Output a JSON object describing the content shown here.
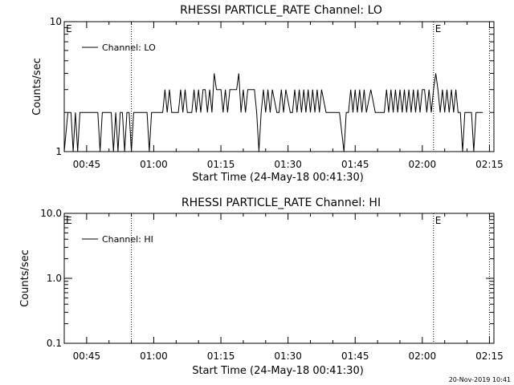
{
  "footer": {
    "timestamp": "20-Nov-2019 10:41"
  },
  "chart_data": [
    {
      "type": "line",
      "title": "RHESSI PARTICLE_RATE Channel: LO",
      "xlabel": "Start Time (24-May-18 00:41:30)",
      "ylabel": "Counts/sec",
      "y_scale": "log",
      "xlim_minutes_after_start": [
        -1.5,
        94.5
      ],
      "ylim": [
        1,
        10
      ],
      "x_ticks": [
        "00:45",
        "01:00",
        "01:15",
        "01:30",
        "01:45",
        "02:00",
        "02:15"
      ],
      "x_tick_minutes": [
        3.5,
        18.5,
        33.5,
        48.5,
        63.5,
        78.5,
        93.5
      ],
      "y_ticks": [
        "1",
        "10"
      ],
      "y_tick_values": [
        1,
        10
      ],
      "legend": {
        "placement": "top-left",
        "entries": [
          "Channel: LO"
        ]
      },
      "annotations": [
        {
          "text": "E",
          "at_minute": -1.5
        },
        {
          "text": "E",
          "at_minute": 81
        }
      ],
      "vertical_markers_minutes": [
        13.5,
        81,
        93.5
      ],
      "series": [
        {
          "name": "Channel: LO",
          "points_minutes": [
            -1.5,
            -0.7,
            0,
            0.5,
            1,
            1.5,
            2,
            2.5,
            3,
            3.5,
            4,
            4.5,
            5,
            5.5,
            6,
            6.5,
            7,
            8,
            9,
            9.5,
            10,
            10.5,
            11,
            11.5,
            12,
            12.5,
            13,
            13.5,
            14,
            15,
            16,
            17,
            17.5,
            18,
            19,
            20,
            20.5,
            21,
            21.5,
            22,
            22.5,
            23,
            24,
            24.5,
            25,
            25.5,
            26,
            27,
            27.5,
            28,
            28.5,
            29,
            29.5,
            30,
            30.5,
            31,
            31.5,
            32,
            32.5,
            33,
            33.5,
            34,
            34.5,
            35,
            35.5,
            36,
            37,
            37.5,
            38,
            38.5,
            39,
            39.5,
            40,
            40.5,
            41,
            41.5,
            42,
            42.5,
            43,
            43.5,
            44,
            44.5,
            45,
            46,
            46.5,
            47,
            47.5,
            48,
            49,
            49.5,
            50,
            50.5,
            51,
            51.5,
            52,
            52.5,
            53,
            53.5,
            54,
            54.5,
            55,
            55.5,
            56,
            57,
            58,
            58.5,
            59,
            59.5,
            60,
            61,
            61.5,
            62,
            62.5,
            63,
            63.5,
            64,
            64.5,
            65,
            65.5,
            66,
            67,
            68,
            69,
            69.5,
            70,
            70.5,
            71,
            71.5,
            72,
            72.5,
            73,
            73.5,
            74,
            74.5,
            75,
            75.5,
            76,
            76.5,
            77,
            77.5,
            78,
            78.5,
            79,
            79.5,
            80,
            80.5,
            81,
            81.5,
            82,
            82.5,
            83,
            83.5,
            84,
            84.5,
            85,
            85.5,
            86,
            86.5,
            87,
            87.5,
            88,
            88.5,
            89,
            89.5,
            90,
            90.5,
            91,
            92
          ],
          "values": [
            1,
            2,
            2,
            1,
            2,
            1,
            2,
            2,
            2,
            2,
            2,
            2,
            2,
            2,
            2,
            1,
            2,
            2,
            2,
            1,
            2,
            1,
            2,
            2,
            1,
            2,
            2,
            1,
            2,
            2,
            2,
            2,
            1,
            2,
            2,
            2,
            2,
            3,
            2,
            3,
            2,
            2,
            2,
            3,
            2,
            3,
            2,
            2,
            3,
            2,
            3,
            2,
            3,
            3,
            2,
            3,
            2,
            4,
            3,
            3,
            3,
            2,
            3,
            2,
            3,
            3,
            3,
            4,
            2,
            3,
            2,
            3,
            3,
            3,
            3,
            2,
            1,
            2,
            3,
            2,
            3,
            2,
            3,
            2,
            2,
            3,
            2,
            3,
            2,
            2,
            3,
            2,
            3,
            2,
            3,
            2,
            3,
            2,
            3,
            2,
            3,
            2,
            3,
            2,
            2,
            2,
            2,
            2,
            2,
            1,
            2,
            2,
            3,
            2,
            3,
            2,
            3,
            2,
            3,
            2,
            3,
            2,
            2,
            2,
            2,
            3,
            2,
            3,
            2,
            3,
            2,
            3,
            2,
            3,
            2,
            3,
            2,
            3,
            2,
            3,
            2,
            3,
            3,
            2,
            3,
            2,
            3,
            4,
            3,
            2,
            3,
            2,
            3,
            2,
            3,
            2,
            3,
            2,
            2,
            1,
            2,
            2,
            2,
            2,
            1,
            2,
            2,
            2
          ]
        }
      ]
    },
    {
      "type": "line",
      "title": "RHESSI PARTICLE_RATE Channel: HI",
      "xlabel": "Start Time (24-May-18 00:41:30)",
      "ylabel": "Counts/sec",
      "y_scale": "log",
      "xlim_minutes_after_start": [
        -1.5,
        94.5
      ],
      "ylim": [
        0.1,
        10
      ],
      "x_ticks": [
        "00:45",
        "01:00",
        "01:15",
        "01:30",
        "01:45",
        "02:00",
        "02:15"
      ],
      "x_tick_minutes": [
        3.5,
        18.5,
        33.5,
        48.5,
        63.5,
        78.5,
        93.5
      ],
      "y_ticks": [
        "10.0",
        "1.0",
        "0.1"
      ],
      "y_tick_values": [
        10,
        1,
        0.1
      ],
      "legend": {
        "placement": "top-left",
        "entries": [
          "Channel: HI"
        ]
      },
      "annotations": [
        {
          "text": "E",
          "at_minute": -1.5
        },
        {
          "text": "E",
          "at_minute": 81
        }
      ],
      "vertical_markers_minutes": [
        13.5,
        81,
        93.5
      ],
      "series": [
        {
          "name": "Channel: HI",
          "points_minutes": [],
          "values": []
        }
      ]
    }
  ]
}
